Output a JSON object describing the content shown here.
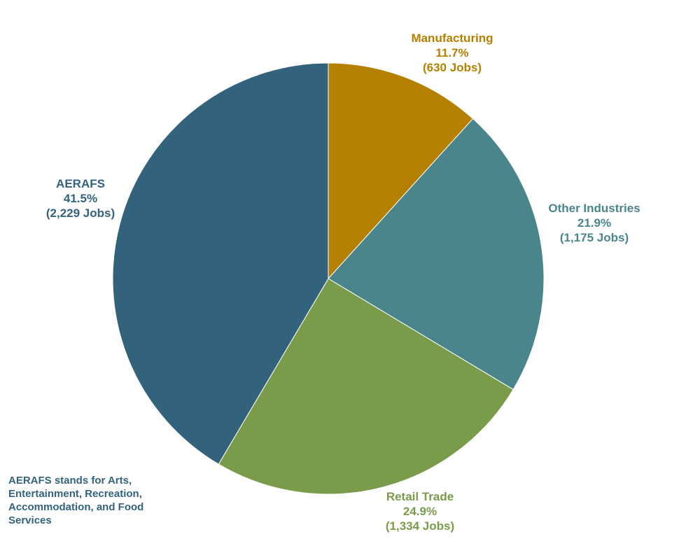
{
  "chart_data": {
    "type": "pie",
    "title": "",
    "start_angle_deg": 0,
    "direction": "clockwise",
    "slices": [
      {
        "name": "Manufacturing",
        "percent": 11.7,
        "percent_label": "11.7%",
        "jobs_label": "(630 Jobs)",
        "value": 630,
        "color": "#b57f00"
      },
      {
        "name": "Other Industries",
        "percent": 21.9,
        "percent_label": "21.9%",
        "jobs_label": "(1,175 Jobs)",
        "value": 1175,
        "color": "#4a858c"
      },
      {
        "name": "Retail Trade",
        "percent": 24.9,
        "percent_label": "24.9%",
        "jobs_label": "(1,334 Jobs)",
        "value": 1334,
        "color": "#7a9c4a"
      },
      {
        "name": "AERAFS",
        "percent": 41.5,
        "percent_label": "41.5%",
        "jobs_label": "(2,229 Jobs)",
        "value": 2229,
        "color": "#33637c"
      }
    ]
  },
  "footnote": "AERAFS stands for Arts, Entertainment, Recreation, Accommodation, and Food Services"
}
